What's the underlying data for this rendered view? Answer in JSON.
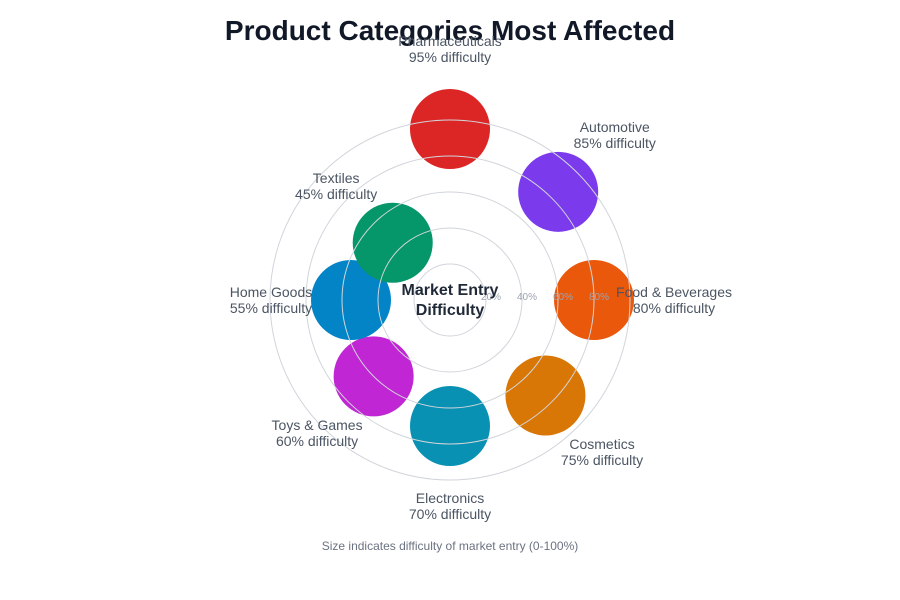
{
  "title": "Product Categories Most Affected",
  "center_label": [
    "Market Entry",
    "Difficulty"
  ],
  "note": "Size indicates difficulty of market entry (0-100%)",
  "grid_ticks": [
    "20%",
    "40%",
    "60%",
    "80%"
  ],
  "colors": {
    "grid": "#d1d5db",
    "title": "#111827",
    "label": "#4b5563"
  },
  "chart_data": {
    "type": "radial-bubble",
    "title": "Product Categories Most Affected",
    "subtitle": "Size indicates difficulty of market entry (0-100%)",
    "center_text": "Market Entry Difficulty",
    "radial_axis": {
      "range": [
        0,
        100
      ],
      "ticks": [
        20,
        40,
        60,
        80,
        100
      ],
      "tick_labels": [
        "20%",
        "40%",
        "60%",
        "80%"
      ],
      "unit": "%"
    },
    "categories": [
      "Pharmaceuticals",
      "Automotive",
      "Food & Beverages",
      "Cosmetics",
      "Electronics",
      "Toys & Games",
      "Home Goods",
      "Textiles"
    ],
    "values": [
      95,
      85,
      80,
      75,
      70,
      60,
      55,
      45
    ],
    "colors": [
      "#dc2626",
      "#7c3aed",
      "#ea580c",
      "#d97706",
      "#0891b2",
      "#c026d3",
      "#0284c7",
      "#059669"
    ],
    "label_suffix": "difficulty",
    "grid": true,
    "legend": "none"
  }
}
